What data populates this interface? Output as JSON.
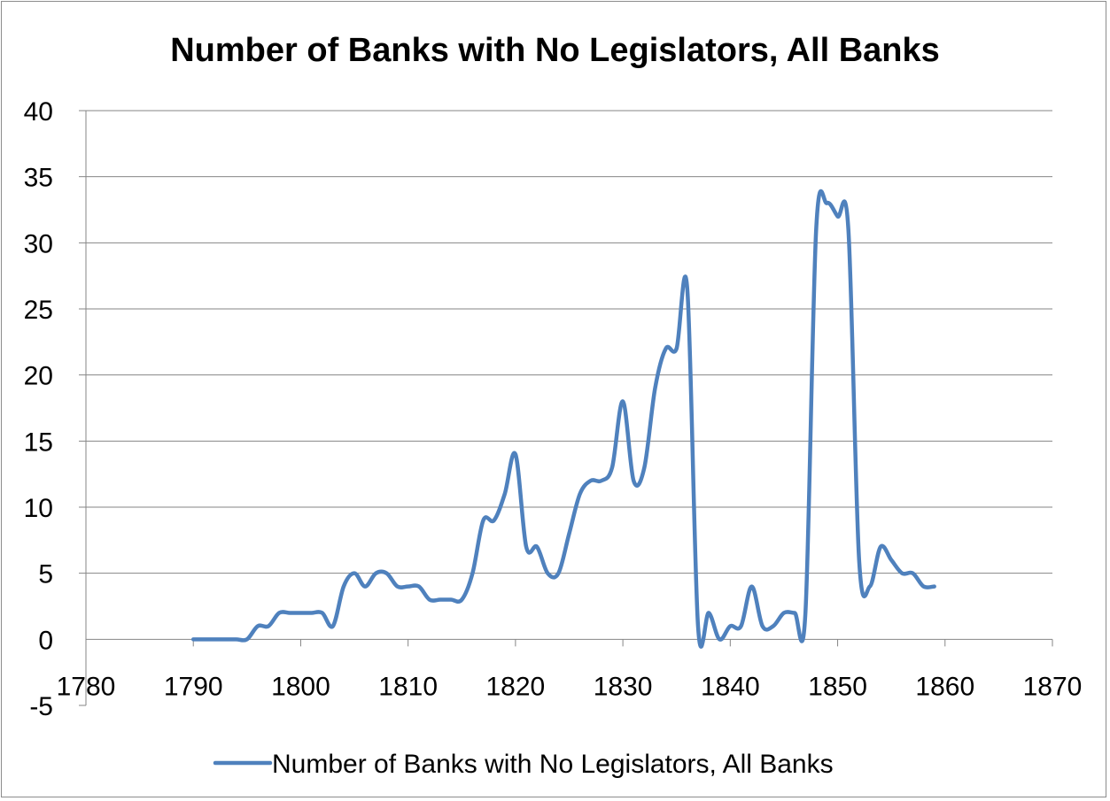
{
  "chart_data": {
    "type": "line",
    "title": "Number of Banks with No Legislators, All Banks",
    "xlabel": "",
    "ylabel": "",
    "xlim": [
      1780,
      1870
    ],
    "ylim": [
      -5,
      40
    ],
    "x_ticks": [
      1780,
      1790,
      1800,
      1810,
      1820,
      1830,
      1840,
      1850,
      1860,
      1870
    ],
    "y_ticks": [
      -5,
      0,
      5,
      10,
      15,
      20,
      25,
      30,
      35,
      40
    ],
    "grid": "horizontal",
    "legend": "bottom",
    "series": [
      {
        "name": "Number of Banks with No Legislators, All Banks",
        "color": "#4f81bd",
        "x": [
          1790,
          1791,
          1792,
          1793,
          1794,
          1795,
          1796,
          1797,
          1798,
          1799,
          1800,
          1801,
          1802,
          1803,
          1804,
          1805,
          1806,
          1807,
          1808,
          1809,
          1810,
          1811,
          1812,
          1813,
          1814,
          1815,
          1816,
          1817,
          1818,
          1819,
          1820,
          1821,
          1822,
          1823,
          1824,
          1825,
          1826,
          1827,
          1828,
          1829,
          1830,
          1831,
          1832,
          1833,
          1834,
          1835,
          1836,
          1837,
          1838,
          1839,
          1840,
          1841,
          1842,
          1843,
          1844,
          1845,
          1846,
          1847,
          1848,
          1849,
          1850,
          1851,
          1852,
          1853,
          1854,
          1855,
          1856,
          1857,
          1858,
          1859
        ],
        "values": [
          0,
          0,
          0,
          0,
          0,
          0,
          1,
          1,
          2,
          2,
          2,
          2,
          2,
          1,
          4,
          5,
          4,
          5,
          5,
          4,
          4,
          4,
          3,
          3,
          3,
          3,
          5,
          9,
          9,
          11,
          14,
          7,
          7,
          5,
          5,
          8,
          11,
          12,
          12,
          13,
          18,
          12,
          13,
          19,
          22,
          22,
          26.5,
          1,
          2,
          0,
          1,
          1,
          4,
          1,
          1,
          2,
          2,
          2,
          31,
          33,
          32,
          31,
          6,
          4,
          7,
          6,
          5,
          5,
          4,
          4
        ]
      }
    ]
  }
}
